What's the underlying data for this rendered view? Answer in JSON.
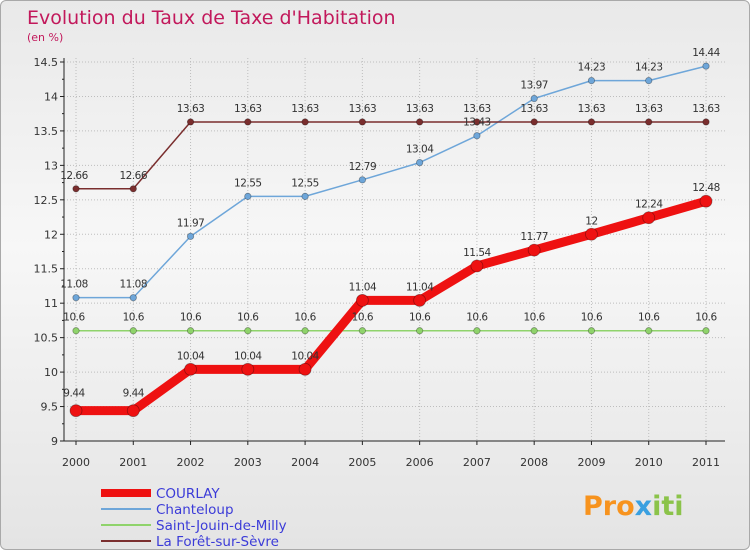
{
  "title": "Evolution du Taux de Taxe d'Habitation",
  "subtitle": "(en %)",
  "logo": "Proxiti",
  "chart_data": {
    "type": "line",
    "x": [
      "2000",
      "2001",
      "2002",
      "2003",
      "2004",
      "2005",
      "2006",
      "2007",
      "2008",
      "2009",
      "2010",
      "2011"
    ],
    "ylim": [
      9,
      14.5
    ],
    "yticks": [
      "9",
      "9.5",
      "10",
      "10.5",
      "11",
      "11.5",
      "12",
      "12.5",
      "13",
      "13.5",
      "14",
      "14.5"
    ],
    "grid": true,
    "legend_position": "bottom-left",
    "series": [
      {
        "name": "COURLAY",
        "color": "#ee1111",
        "values": [
          9.44,
          9.44,
          10.04,
          10.04,
          10.04,
          11.04,
          11.04,
          11.54,
          11.77,
          12,
          12.24,
          12.48
        ],
        "labels": [
          "9.44",
          "9.44",
          "10.04",
          "10.04",
          "10.04",
          "11.04",
          "11.04",
          "11.54",
          "11.77",
          "12",
          "12.24",
          "12.48"
        ]
      },
      {
        "name": "Chanteloup",
        "color": "#6ea6d9",
        "values": [
          11.08,
          11.08,
          11.97,
          12.55,
          12.55,
          12.79,
          13.04,
          13.43,
          13.97,
          14.23,
          14.23,
          14.44
        ],
        "labels": [
          "11.08",
          "11.08",
          "11.97",
          "12.55",
          "12.55",
          "12.79",
          "13.04",
          "13.43",
          "13.97",
          "14.23",
          "14.23",
          "14.44"
        ]
      },
      {
        "name": "Saint-Jouin-de-Milly",
        "color": "#8fd36b",
        "values": [
          10.6,
          10.6,
          10.6,
          10.6,
          10.6,
          10.6,
          10.6,
          10.6,
          10.6,
          10.6,
          10.6,
          10.6
        ],
        "labels": [
          "10.6",
          "10.6",
          "10.6",
          "10.6",
          "10.6",
          "10.6",
          "10.6",
          "10.6",
          "10.6",
          "10.6",
          "10.6",
          "10.6"
        ]
      },
      {
        "name": "La Forêt-sur-Sèvre",
        "color": "#7a2e2e",
        "values": [
          12.66,
          12.66,
          13.63,
          13.63,
          13.63,
          13.63,
          13.63,
          13.63,
          13.63,
          13.63,
          13.63,
          13.63
        ],
        "labels": [
          "12.66",
          "12.66",
          "13.63",
          "13.63",
          "13.63",
          "13.63",
          "13.63",
          "13.63",
          "13.63",
          "13.63",
          "13.63",
          "13.63"
        ]
      }
    ]
  }
}
